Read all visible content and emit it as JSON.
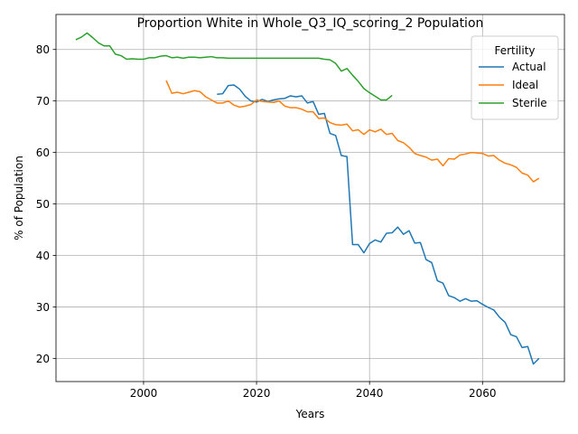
{
  "chart_data": {
    "type": "line",
    "title": "Proportion White in Whole_Q3_IQ_scoring_2 Population",
    "xlabel": "Years",
    "ylabel": "% of Population",
    "xlim": [
      1984.5,
      2074.5
    ],
    "ylim": [
      15.5,
      86.8
    ],
    "x_ticks": [
      2000,
      2020,
      2040,
      2060
    ],
    "y_ticks": [
      20,
      30,
      40,
      50,
      60,
      70,
      80
    ],
    "grid": true,
    "legend": {
      "title": "Fertility",
      "placement": "top-right"
    },
    "series": [
      {
        "name": "Actual",
        "color": "#1f77b4",
        "x": [
          2013,
          2014,
          2015,
          2016,
          2017,
          2018,
          2019,
          2020,
          2021,
          2022,
          2023,
          2024,
          2025,
          2026,
          2027,
          2028,
          2029,
          2030,
          2031,
          2032,
          2033,
          2034,
          2035,
          2036,
          2037,
          2038,
          2039,
          2040,
          2041,
          2042,
          2043,
          2044,
          2045,
          2046,
          2047,
          2048,
          2049,
          2050,
          2051,
          2052,
          2053,
          2054,
          2055,
          2056,
          2057,
          2058,
          2059,
          2060,
          2061,
          2062,
          2063,
          2064,
          2065,
          2066,
          2067,
          2068,
          2069,
          2070
        ],
        "values": [
          71.3,
          71.4,
          73.0,
          73.1,
          72.3,
          70.9,
          70.0,
          69.8,
          70.3,
          69.9,
          70.2,
          70.4,
          70.5,
          71.0,
          70.8,
          71.0,
          69.6,
          69.9,
          67.4,
          67.6,
          63.7,
          63.3,
          59.4,
          59.2,
          42.1,
          42.1,
          40.5,
          42.3,
          43.0,
          42.6,
          44.3,
          44.4,
          45.5,
          44.1,
          44.8,
          42.4,
          42.5,
          39.2,
          38.6,
          35.1,
          34.6,
          32.2,
          31.8,
          31.1,
          31.6,
          31.1,
          31.2,
          30.5,
          29.9,
          29.4,
          28.0,
          27.0,
          24.6,
          24.2,
          22.1,
          22.3,
          18.9,
          20.0
        ]
      },
      {
        "name": "Ideal",
        "color": "#ff7f0e",
        "x": [
          2004,
          2005,
          2006,
          2007,
          2008,
          2009,
          2010,
          2011,
          2012,
          2013,
          2014,
          2015,
          2016,
          2017,
          2018,
          2019,
          2020,
          2021,
          2022,
          2023,
          2024,
          2025,
          2026,
          2027,
          2028,
          2029,
          2030,
          2031,
          2032,
          2033,
          2034,
          2035,
          2036,
          2037,
          2038,
          2039,
          2040,
          2041,
          2042,
          2043,
          2044,
          2045,
          2046,
          2047,
          2048,
          2049,
          2050,
          2051,
          2052,
          2053,
          2054,
          2055,
          2056,
          2057,
          2058,
          2059,
          2060,
          2061,
          2062,
          2063,
          2064,
          2065,
          2066,
          2067,
          2068,
          2069,
          2070
        ],
        "values": [
          74.0,
          71.5,
          71.7,
          71.4,
          71.7,
          72.0,
          71.8,
          70.8,
          70.2,
          69.6,
          69.6,
          70.0,
          69.2,
          68.8,
          69.0,
          69.3,
          70.2,
          69.9,
          69.8,
          69.7,
          70.0,
          69.0,
          68.7,
          68.7,
          68.4,
          67.9,
          67.9,
          66.6,
          66.7,
          65.8,
          65.4,
          65.3,
          65.5,
          64.2,
          64.4,
          63.5,
          64.4,
          64.0,
          64.5,
          63.5,
          63.7,
          62.3,
          61.9,
          61.0,
          59.8,
          59.4,
          59.1,
          58.5,
          58.7,
          57.4,
          58.8,
          58.7,
          59.5,
          59.7,
          60.0,
          59.9,
          59.8,
          59.3,
          59.4,
          58.5,
          57.9,
          57.6,
          57.1,
          56.0,
          55.6,
          54.3,
          55.0
        ]
      },
      {
        "name": "Sterile",
        "color": "#2ca02c",
        "x": [
          1988,
          1989,
          1990,
          1991,
          1992,
          1993,
          1994,
          1995,
          1996,
          1997,
          1998,
          1999,
          2000,
          2001,
          2002,
          2003,
          2004,
          2005,
          2006,
          2007,
          2008,
          2009,
          2010,
          2011,
          2012,
          2013,
          2014,
          2015,
          2016,
          2017,
          2018,
          2019,
          2020,
          2021,
          2022,
          2023,
          2024,
          2025,
          2026,
          2027,
          2028,
          2029,
          2030,
          2031,
          2032,
          2033,
          2034,
          2035,
          2036,
          2037,
          2038,
          2039,
          2040,
          2041,
          2042,
          2043,
          2044
        ],
        "values": [
          81.9,
          82.4,
          83.2,
          82.3,
          81.3,
          80.7,
          80.7,
          79.1,
          78.8,
          78.1,
          78.2,
          78.1,
          78.1,
          78.4,
          78.4,
          78.7,
          78.8,
          78.4,
          78.5,
          78.3,
          78.5,
          78.5,
          78.4,
          78.5,
          78.6,
          78.4,
          78.4,
          78.3,
          78.3,
          78.3,
          78.3,
          78.3,
          78.3,
          78.3,
          78.3,
          78.3,
          78.3,
          78.3,
          78.3,
          78.3,
          78.3,
          78.3,
          78.3,
          78.3,
          78.1,
          78.0,
          77.3,
          75.8,
          76.3,
          75.0,
          73.8,
          72.4,
          71.6,
          70.9,
          70.2,
          70.2,
          71.1
        ]
      }
    ]
  }
}
